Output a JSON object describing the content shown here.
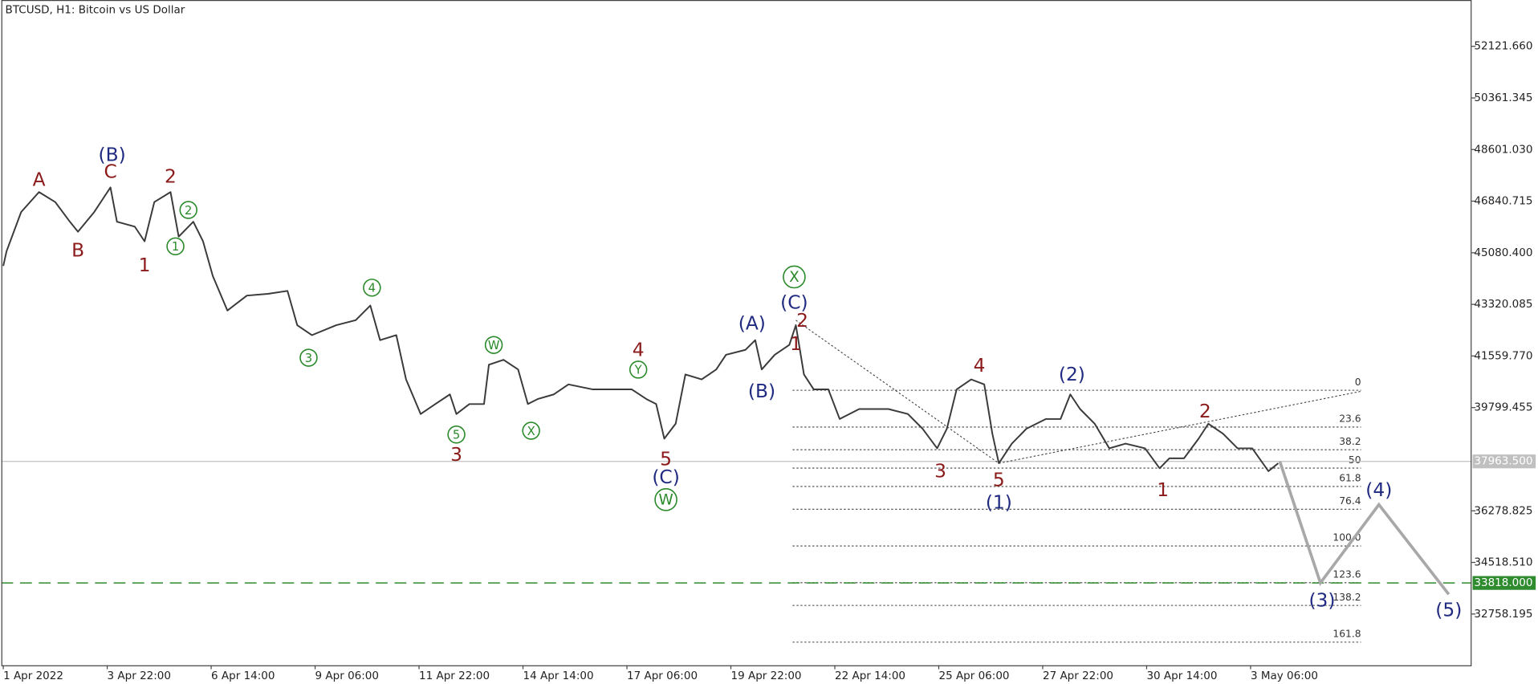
{
  "chart_data": {
    "type": "price",
    "title": "BTCUSD, H1:  Bitcoin vs US Dollar",
    "xlim": [
      -1.2,
      904.1
    ],
    "ylim": [
      31010,
      53702
    ],
    "xticks": [
      {
        "value": 0,
        "label": "1 Apr 2022"
      },
      {
        "value": 64,
        "label": "3 Apr 22:00"
      },
      {
        "value": 128,
        "label": "6 Apr 14:00"
      },
      {
        "value": 192,
        "label": "9 Apr 06:00"
      },
      {
        "value": 256,
        "label": "11 Apr 22:00"
      },
      {
        "value": 320,
        "label": "14 Apr 14:00"
      },
      {
        "value": 384,
        "label": "17 Apr 06:00"
      },
      {
        "value": 448,
        "label": "19 Apr 22:00"
      },
      {
        "value": 512,
        "label": "22 Apr 14:00"
      },
      {
        "value": 576,
        "label": "25 Apr 06:00"
      },
      {
        "value": 640,
        "label": "27 Apr 22:00"
      },
      {
        "value": 704,
        "label": "30 Apr 14:00"
      },
      {
        "value": 768,
        "label": "3 May 06:00"
      }
    ],
    "yticks": [
      {
        "value": 52121.66,
        "label": "52121.660"
      },
      50361.345,
      {
        "value": 48601.03,
        "label": "48601.030"
      },
      46840.715,
      {
        "value": 45080.4,
        "label": "45080.400"
      },
      43320.085,
      {
        "value": 41559.77,
        "label": "41559.770"
      },
      39799.455,
      36278.825,
      {
        "value": 34518.51,
        "label": "34518.510"
      },
      32758.195
    ],
    "series": [
      {
        "name": "BTCUSD",
        "color": "#3a3a3a",
        "x": [
          0,
          2,
          11,
          22,
          32,
          41,
          46,
          56,
          66,
          70,
          81,
          87,
          93,
          103,
          108,
          117,
          123,
          129,
          138,
          150,
          163,
          175,
          181,
          190,
          205,
          217,
          226,
          232,
          242,
          248,
          257,
          266,
          275,
          279,
          287,
          296,
          299,
          308,
          317,
          323,
          329,
          339,
          348,
          363,
          375,
          387,
          396,
          402,
          407,
          414,
          420,
          430,
          439,
          445,
          457,
          463,
          467,
          475,
          484,
          488,
          493,
          499,
          508,
          515,
          527,
          545,
          557,
          566,
          575,
          581,
          587,
          596,
          604,
          609,
          613,
          621,
          630,
          642,
          651,
          657,
          663,
          672,
          681,
          691,
          703,
          712,
          718,
          727,
          736,
          742,
          751,
          760,
          769,
          779,
          785
        ],
        "values": [
          44630,
          45130,
          46470,
          47150,
          46810,
          46140,
          45800,
          46470,
          47310,
          46140,
          45970,
          45470,
          46810,
          47150,
          45630,
          46140,
          45470,
          44290,
          43110,
          43620,
          43680,
          43780,
          42610,
          42270,
          42610,
          42780,
          43280,
          42100,
          42270,
          40760,
          39580,
          39920,
          40250,
          39580,
          39920,
          39920,
          41260,
          41430,
          41100,
          39920,
          40090,
          40250,
          40590,
          40420,
          40420,
          40420,
          40090,
          39920,
          38740,
          39250,
          40930,
          40760,
          41100,
          41600,
          41770,
          42100,
          41100,
          41600,
          41940,
          42610,
          40930,
          40420,
          40420,
          39410,
          39750,
          39750,
          39580,
          39080,
          38410,
          39080,
          40420,
          40760,
          40590,
          38910,
          37900,
          38570,
          39080,
          39410,
          39410,
          40250,
          39750,
          39250,
          38410,
          38570,
          38410,
          37730,
          38070,
          38070,
          38740,
          39250,
          38910,
          38410,
          38410,
          37630,
          37900
        ]
      }
    ],
    "current_price": {
      "value": 37963.5,
      "label": "37963.500",
      "color": "#c0c0c0"
    },
    "level_line": {
      "value": 33818,
      "label": "33818.000",
      "color": "#2e8b2e"
    },
    "fibonacci": {
      "level_0": 40390,
      "level_100": 35080,
      "x": [
        486,
        836
      ],
      "color": "#444444",
      "levels": [
        0,
        23.6,
        38.2,
        50,
        61.8,
        76.4,
        {
          "value": 100,
          "label": "100.0"
        },
        123.6,
        138.2,
        161.8
      ]
    },
    "trendlines": [
      {
        "x": [
          488,
          613
        ],
        "y": [
          42780,
          37900
        ]
      },
      {
        "x": [
          613,
          836
        ],
        "y": [
          37900,
          40355
        ]
      }
    ],
    "forecast": {
      "x": [
        786,
        811,
        847,
        890
      ],
      "y": [
        37963.5,
        33820,
        36490,
        33430
      ],
      "color": "#a8a8a8"
    },
    "annotations": [
      {
        "text": "A",
        "x": 22,
        "y": 47580,
        "color": "#8b1a1a"
      },
      {
        "text": "B",
        "x": 46,
        "y": 45160,
        "color": "#8b1a1a"
      },
      {
        "text": "(B)",
        "x": 67,
        "y": 48420,
        "color": "#1f2a80"
      },
      {
        "text": "C",
        "x": 66,
        "y": 47850,
        "color": "#8b1a1a"
      },
      {
        "text": "2",
        "x": 103,
        "y": 47680,
        "color": "#8b1a1a"
      },
      {
        "text": "1",
        "x": 87,
        "y": 44660,
        "color": "#8b1a1a"
      },
      {
        "text": "2",
        "x": 114,
        "y": 46540,
        "color": "#2a8a2a",
        "style": "circled"
      },
      {
        "text": "1",
        "x": 106,
        "y": 45300,
        "color": "#2a8a2a",
        "style": "circled"
      },
      {
        "text": "4",
        "x": 227,
        "y": 43890,
        "color": "#2a8a2a",
        "style": "circled"
      },
      {
        "text": "3",
        "x": 188,
        "y": 41500,
        "color": "#2a8a2a",
        "style": "circled"
      },
      {
        "text": "5",
        "x": 279,
        "y": 38880,
        "color": "#2a8a2a",
        "style": "circled"
      },
      {
        "text": "3",
        "x": 279,
        "y": 38200,
        "color": "#8b1a1a"
      },
      {
        "text": "W",
        "x": 302,
        "y": 41935,
        "color": "#2a8a2a",
        "style": "circled"
      },
      {
        "text": "X",
        "x": 325,
        "y": 39010,
        "color": "#2a8a2a",
        "style": "circled"
      },
      {
        "text": "4",
        "x": 391,
        "y": 41770,
        "color": "#8b1a1a"
      },
      {
        "text": "Y",
        "x": 391,
        "y": 41095,
        "color": "#2a8a2a",
        "style": "circled"
      },
      {
        "text": "5",
        "x": 408,
        "y": 38040,
        "color": "#8b1a1a"
      },
      {
        "text": "(C)",
        "x": 408,
        "y": 37430,
        "color": "#1f2a80"
      },
      {
        "text": "W",
        "x": 408,
        "y": 36660,
        "color": "#2a8a2a",
        "style": "circled-large"
      },
      {
        "text": "(A)",
        "x": 461,
        "y": 42675,
        "color": "#1f2a80"
      },
      {
        "text": "(B)",
        "x": 467,
        "y": 40355,
        "color": "#1f2a80"
      },
      {
        "text": "X",
        "x": 487,
        "y": 44255,
        "color": "#2a8a2a",
        "style": "circled-large"
      },
      {
        "text": "(C)",
        "x": 487,
        "y": 43380,
        "color": "#1f2a80"
      },
      {
        "text": "2",
        "x": 492,
        "y": 42775,
        "color": "#8b1a1a"
      },
      {
        "text": "1",
        "x": 488,
        "y": 41970,
        "color": "#8b1a1a"
      },
      {
        "text": "4",
        "x": 601,
        "y": 41230,
        "color": "#8b1a1a"
      },
      {
        "text": "3",
        "x": 577,
        "y": 37630,
        "color": "#8b1a1a"
      },
      {
        "text": "5",
        "x": 613,
        "y": 37330,
        "color": "#8b1a1a"
      },
      {
        "text": "(1)",
        "x": 613,
        "y": 36560,
        "color": "#1f2a80"
      },
      {
        "text": "(2)",
        "x": 658,
        "y": 40930,
        "color": "#1f2a80"
      },
      {
        "text": "2",
        "x": 740,
        "y": 39680,
        "color": "#8b1a1a"
      },
      {
        "text": "1",
        "x": 714,
        "y": 36995,
        "color": "#8b1a1a"
      },
      {
        "text": "(3)",
        "x": 812,
        "y": 33230,
        "color": "#1f2a80"
      },
      {
        "text": "(4)",
        "x": 847,
        "y": 36995,
        "color": "#1f2a80"
      },
      {
        "text": "(5)",
        "x": 890,
        "y": 32890,
        "color": "#1f2a80"
      }
    ]
  }
}
